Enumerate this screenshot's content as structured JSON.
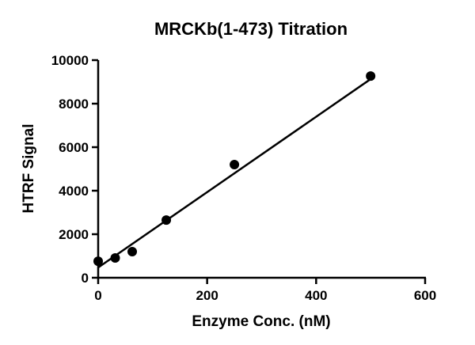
{
  "chart_data": {
    "type": "scatter",
    "title": "MRCKb(1-473) Titration",
    "xlabel": "Enzyme Conc. (nM)",
    "ylabel": "HTRF Signal",
    "xlim": [
      0,
      600
    ],
    "ylim": [
      0,
      10000
    ],
    "xticks": [
      "0",
      "200",
      "400",
      "600"
    ],
    "yticks": [
      "0",
      "2000",
      "4000",
      "6000",
      "8000",
      "10000"
    ],
    "grid": false,
    "legend": null,
    "series": [
      {
        "name": "data",
        "x": [
          0,
          31.25,
          62.5,
          125,
          250,
          500
        ],
        "y": [
          760,
          910,
          1200,
          2650,
          5200,
          9270
        ]
      }
    ],
    "fit_line": {
      "x": [
        0,
        500
      ],
      "y": [
        470,
        9130
      ]
    },
    "colors": {
      "points": "#000000",
      "line": "#000000",
      "axes": "#000000"
    }
  }
}
